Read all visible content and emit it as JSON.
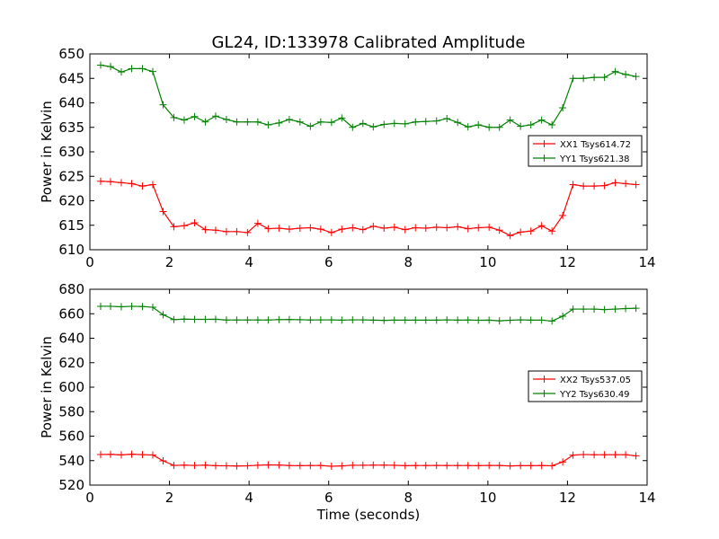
{
  "chart_title": "GL24, ID:133978 Calibrated Amplitude",
  "chart_data": [
    {
      "type": "line",
      "xlabel": "",
      "ylabel": "Power in Kelvin",
      "xlim": [
        0,
        14
      ],
      "ylim": [
        610,
        650
      ],
      "xticks": [
        "0",
        "2",
        "4",
        "6",
        "8",
        "10",
        "12",
        "14"
      ],
      "yticks": [
        "610",
        "615",
        "620",
        "625",
        "630",
        "635",
        "640",
        "645",
        "650"
      ],
      "grid": false,
      "legend_position": "right",
      "x": [
        0.27,
        0.52,
        0.79,
        1.05,
        1.32,
        1.58,
        1.84,
        2.11,
        2.37,
        2.63,
        2.9,
        3.16,
        3.43,
        3.69,
        3.96,
        4.22,
        4.48,
        4.75,
        5.01,
        5.28,
        5.54,
        5.8,
        6.07,
        6.33,
        6.6,
        6.86,
        7.12,
        7.39,
        7.65,
        7.92,
        8.18,
        8.44,
        8.71,
        8.97,
        9.24,
        9.5,
        9.76,
        10.03,
        10.29,
        10.56,
        10.82,
        11.08,
        11.35,
        11.61,
        11.88,
        12.14,
        12.4,
        12.67,
        12.93,
        13.2,
        13.46,
        13.72
      ],
      "series": [
        {
          "name": "XX1 Tsys614.72",
          "color": "#ff0000",
          "values": [
            624.0,
            623.9,
            623.7,
            623.5,
            623.0,
            623.3,
            617.8,
            614.7,
            614.9,
            615.5,
            614.1,
            614.0,
            613.7,
            613.7,
            613.5,
            615.4,
            614.3,
            614.4,
            614.2,
            614.4,
            614.5,
            614.2,
            613.5,
            614.2,
            614.5,
            614.1,
            614.8,
            614.4,
            614.6,
            614.1,
            614.5,
            614.4,
            614.6,
            614.5,
            614.7,
            614.3,
            614.5,
            614.6,
            614.0,
            612.9,
            613.6,
            613.8,
            614.9,
            613.8,
            617.0,
            623.3,
            623.0,
            623.0,
            623.1,
            623.7,
            623.5,
            623.3
          ]
        },
        {
          "name": "YY1 Tsys621.38",
          "color": "#008000",
          "values": [
            647.7,
            647.4,
            646.3,
            647.0,
            647.0,
            646.4,
            639.6,
            637.0,
            636.5,
            637.2,
            636.1,
            637.3,
            636.6,
            636.1,
            636.1,
            636.1,
            635.5,
            635.9,
            636.6,
            636.1,
            635.2,
            636.1,
            636.0,
            636.9,
            635.0,
            635.8,
            635.1,
            635.6,
            635.8,
            635.7,
            636.1,
            636.2,
            636.3,
            636.8,
            636.0,
            635.1,
            635.5,
            635.0,
            635.0,
            636.5,
            635.2,
            635.5,
            636.5,
            635.5,
            639.0,
            645.0,
            645.0,
            645.2,
            645.2,
            646.4,
            645.8,
            645.4
          ]
        }
      ]
    },
    {
      "type": "line",
      "xlabel": "Time (seconds)",
      "ylabel": "Power in Kelvin",
      "xlim": [
        0,
        14
      ],
      "ylim": [
        520,
        680
      ],
      "xticks": [
        "0",
        "2",
        "4",
        "6",
        "8",
        "10",
        "12",
        "14"
      ],
      "yticks": [
        "520",
        "540",
        "560",
        "580",
        "600",
        "620",
        "640",
        "660",
        "680"
      ],
      "grid": false,
      "legend_position": "right",
      "x": [
        0.27,
        0.52,
        0.79,
        1.05,
        1.32,
        1.58,
        1.84,
        2.11,
        2.37,
        2.63,
        2.9,
        3.16,
        3.43,
        3.69,
        3.96,
        4.22,
        4.48,
        4.75,
        5.01,
        5.28,
        5.54,
        5.8,
        6.07,
        6.33,
        6.6,
        6.86,
        7.12,
        7.39,
        7.65,
        7.92,
        8.18,
        8.44,
        8.71,
        8.97,
        9.24,
        9.5,
        9.76,
        10.03,
        10.29,
        10.56,
        10.82,
        11.08,
        11.35,
        11.61,
        11.88,
        12.14,
        12.4,
        12.67,
        12.93,
        13.2,
        13.46,
        13.72
      ],
      "series": [
        {
          "name": "XX2 Tsys537.05",
          "color": "#ff0000",
          "values": [
            545.0,
            545.1,
            544.7,
            545.2,
            544.9,
            544.6,
            539.8,
            536.1,
            536.3,
            536.1,
            536.3,
            535.9,
            535.8,
            535.6,
            535.8,
            536.2,
            536.5,
            536.4,
            536.0,
            535.9,
            536.0,
            536.0,
            535.4,
            535.7,
            536.2,
            536.2,
            536.3,
            536.3,
            536.2,
            535.9,
            536.0,
            536.0,
            536.1,
            536.0,
            536.0,
            536.0,
            535.9,
            536.1,
            536.0,
            535.7,
            535.9,
            535.9,
            536.0,
            535.8,
            538.9,
            544.5,
            545.0,
            544.8,
            544.8,
            544.9,
            544.8,
            543.9
          ]
        },
        {
          "name": "YY2 Tsys630.49",
          "color": "#008000",
          "values": [
            666.1,
            666.1,
            665.7,
            666.1,
            665.9,
            665.3,
            659.2,
            655.2,
            655.6,
            655.4,
            655.4,
            655.5,
            654.9,
            654.9,
            654.9,
            654.9,
            654.9,
            655.2,
            655.3,
            655.1,
            654.9,
            655.0,
            655.0,
            654.8,
            655.0,
            655.0,
            654.8,
            654.6,
            654.8,
            654.8,
            654.8,
            654.8,
            654.8,
            655.0,
            654.8,
            654.9,
            654.7,
            654.8,
            654.2,
            654.7,
            655.0,
            654.8,
            654.8,
            654.0,
            658.0,
            663.8,
            663.8,
            663.8,
            663.4,
            663.8,
            664.2,
            664.5
          ]
        }
      ]
    }
  ]
}
